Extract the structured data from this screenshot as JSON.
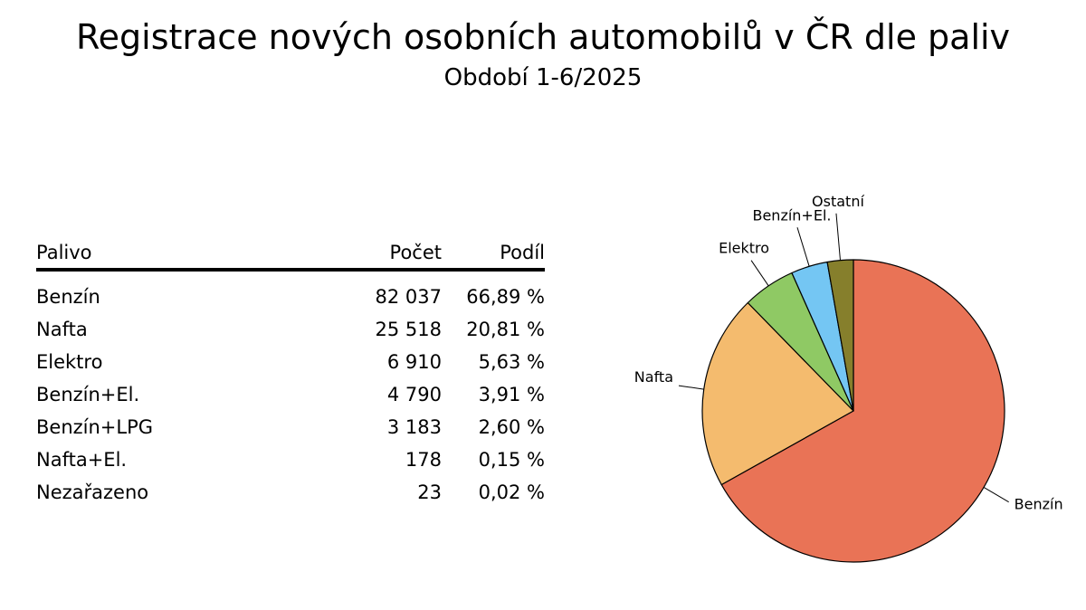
{
  "header": {
    "title": "Registrace nových osobních automobilů v ČR dle paliv",
    "subtitle": "Období 1-6/2025"
  },
  "table": {
    "columns": [
      "Palivo",
      "Počet",
      "Podíl"
    ],
    "rows": [
      {
        "name": "Benzín",
        "count": "82 037",
        "share": "66,89 %"
      },
      {
        "name": "Nafta",
        "count": "25 518",
        "share": "20,81 %"
      },
      {
        "name": "Elektro",
        "count": "6 910",
        "share": "5,63 %"
      },
      {
        "name": "Benzín+El.",
        "count": "4 790",
        "share": "3,91 %"
      },
      {
        "name": "Benzín+LPG",
        "count": "3 183",
        "share": "2,60 %"
      },
      {
        "name": "Nafta+El.",
        "count": "178",
        "share": "0,15 %"
      },
      {
        "name": "Nezařazeno",
        "count": "23",
        "share": "0,02 %"
      }
    ]
  },
  "chart_data": {
    "type": "pie",
    "title": "Registrace nových osobních automobilů v ČR dle paliv",
    "subtitle": "Období 1-6/2025",
    "categories": [
      "Benzín",
      "Nafta",
      "Elektro",
      "Benzín+El.",
      "Ostatní"
    ],
    "values": [
      66.89,
      20.81,
      5.63,
      3.91,
      2.77
    ],
    "colors": [
      "#E97356",
      "#F4BB6E",
      "#8FC964",
      "#74C6F3",
      "#867F2C"
    ],
    "start": "12 o'clock",
    "direction": "clockwise"
  }
}
